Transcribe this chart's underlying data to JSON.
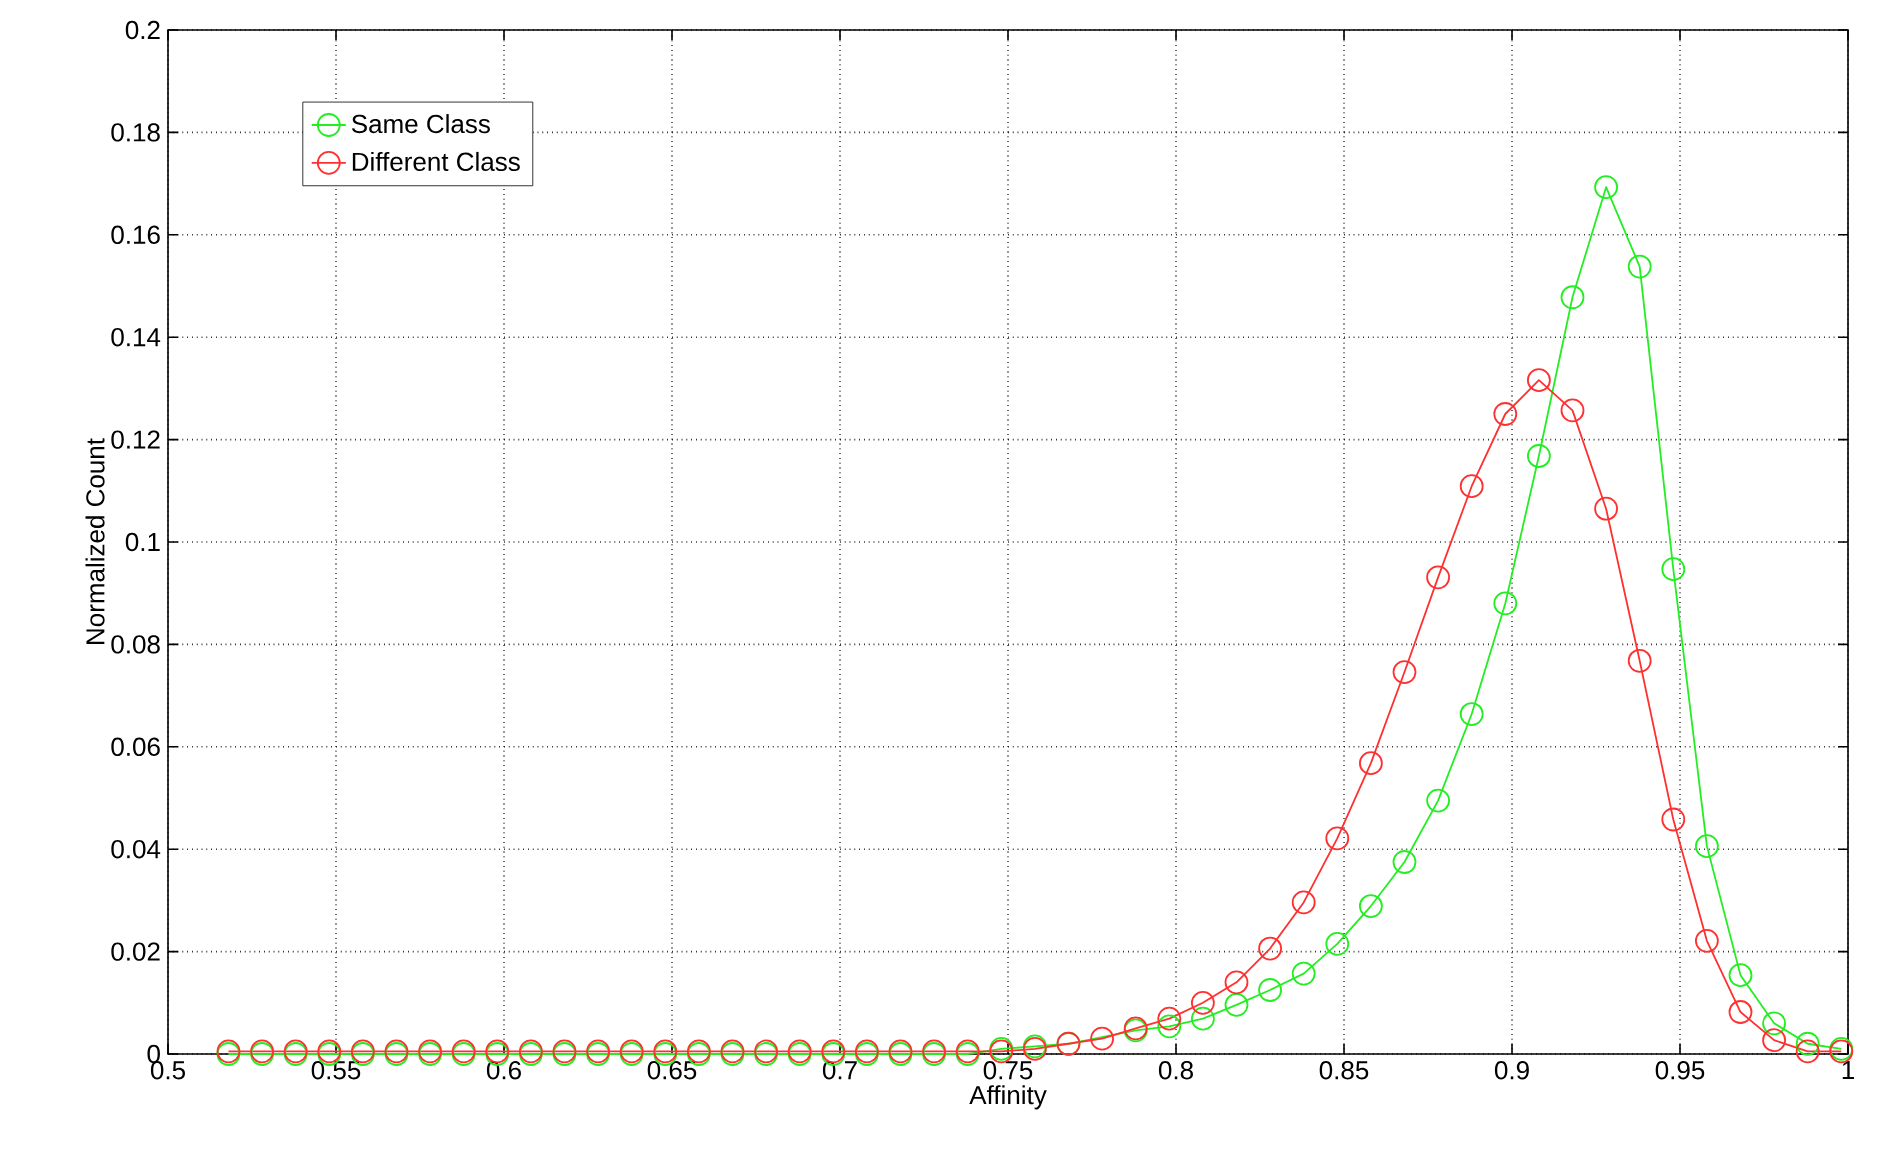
{
  "chart_data": {
    "type": "line",
    "xlabel": "Affinity",
    "ylabel": "Normalized Count",
    "x": [
      0.518,
      0.528,
      0.538,
      0.548,
      0.558,
      0.568,
      0.578,
      0.588,
      0.598,
      0.608,
      0.618,
      0.628,
      0.638,
      0.648,
      0.658,
      0.668,
      0.678,
      0.688,
      0.698,
      0.708,
      0.718,
      0.728,
      0.738,
      0.748,
      0.758,
      0.768,
      0.778,
      0.788,
      0.798,
      0.808,
      0.818,
      0.828,
      0.838,
      0.848,
      0.858,
      0.868,
      0.878,
      0.888,
      0.898,
      0.908,
      0.918,
      0.928,
      0.938,
      0.948,
      0.958,
      0.968,
      0.978,
      0.988,
      0.998
    ],
    "series": [
      {
        "name": "Same Class",
        "color": "#22ee22",
        "values": [
          0,
          0,
          0,
          0,
          0,
          0,
          0,
          0,
          0,
          0,
          0,
          0,
          0,
          0,
          0,
          0,
          0,
          0,
          0,
          0,
          0,
          0,
          0,
          0.001,
          0.0015,
          0.002,
          null,
          0.0046,
          0.0054,
          0.0069,
          0.0096,
          0.0125,
          0.0157,
          0.0215,
          0.0289,
          0.0375,
          0.0495,
          0.0664,
          0.088,
          0.1168,
          0.1478,
          0.1693,
          0.1538,
          0.0947,
          0.0406,
          0.0154,
          0.006,
          0.002,
          0.001
        ]
      },
      {
        "name": "Different Class",
        "color": "#ff3030",
        "values": [
          0.0005,
          0.0005,
          0.0005,
          0.0005,
          0.0005,
          0.0005,
          0.0005,
          0.0005,
          0.0005,
          0.0005,
          0.0005,
          0.0005,
          0.0005,
          0.0005,
          0.0005,
          0.0005,
          0.0005,
          0.0005,
          0.0005,
          0.0005,
          0.0005,
          0.0005,
          0.0005,
          0.0005,
          0.001,
          0.002,
          0.003,
          0.005,
          0.0069,
          0.01,
          0.014,
          0.0206,
          0.0296,
          0.0421,
          0.0568,
          0.0746,
          0.0931,
          0.1109,
          0.125,
          0.1316,
          0.1257,
          0.1065,
          0.0768,
          0.0458,
          0.0221,
          0.0082,
          0.0027,
          0.0005,
          0.0005
        ]
      }
    ],
    "xlim": [
      0.5,
      1
    ],
    "ylim": [
      0,
      0.2
    ],
    "xticks": [
      0.5,
      0.55,
      0.6,
      0.65,
      0.7,
      0.75,
      0.8,
      0.85,
      0.9,
      0.95,
      1
    ],
    "yticks": [
      0,
      0.02,
      0.04,
      0.06,
      0.08,
      0.1,
      0.12,
      0.14,
      0.16,
      0.18,
      0.2
    ],
    "grid": true,
    "legend": "top left",
    "marker": "circle",
    "line_style": "solid"
  }
}
